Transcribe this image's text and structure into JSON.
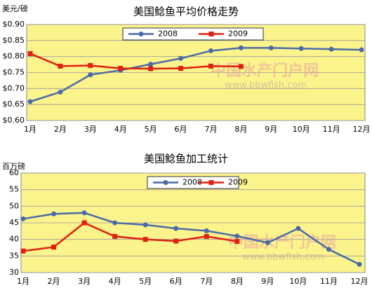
{
  "chart_data": [
    {
      "type": "line",
      "title": "美国鲶鱼平均价格走势",
      "y_label": "美元/磅",
      "categories": [
        "1月",
        "2月",
        "3月",
        "4月",
        "5月",
        "6月",
        "7月",
        "8月",
        "9月",
        "10月",
        "11月",
        "12月"
      ],
      "series": [
        {
          "name": "2008",
          "color": "#4a6aa8",
          "values": [
            0.659,
            0.689,
            0.743,
            0.757,
            0.776,
            0.794,
            0.818,
            0.827,
            0.827,
            0.825,
            0.823,
            0.821
          ]
        },
        {
          "name": "2009",
          "color": "#e02010",
          "values": [
            0.809,
            0.77,
            0.772,
            0.763,
            0.762,
            0.763,
            0.77,
            0.769,
            null,
            null,
            null,
            null
          ]
        }
      ],
      "ylim": [
        0.6,
        0.9
      ],
      "yticks": [
        {
          "value": 0.6,
          "label": "$0.60"
        },
        {
          "value": 0.65,
          "label": "$0.65"
        },
        {
          "value": 0.7,
          "label": "$0.70"
        },
        {
          "value": 0.75,
          "label": "$0.75"
        },
        {
          "value": 0.8,
          "label": "$0.80"
        },
        {
          "value": 0.85,
          "label": "$0.85"
        },
        {
          "value": 0.9,
          "label": "$0.90"
        }
      ],
      "grid": true,
      "legend": "top",
      "watermark": [
        "中国水产门户网",
        "www.bbwfish.com"
      ]
    },
    {
      "type": "line",
      "title": "美国鲶鱼加工统计",
      "y_label": "百万磅",
      "categories": [
        "1月",
        "2月",
        "3月",
        "4月",
        "5月",
        "6月",
        "7月",
        "8月",
        "9月",
        "10月",
        "11月",
        "12月"
      ],
      "series": [
        {
          "name": "2008",
          "color": "#4a6aa8",
          "values": [
            46.2,
            47.7,
            48.0,
            45.0,
            44.4,
            43.3,
            42.6,
            41.0,
            39.0,
            43.3,
            37.0,
            32.5
          ]
        },
        {
          "name": "2009",
          "color": "#e02010",
          "values": [
            36.5,
            37.7,
            45.0,
            40.9,
            40.0,
            39.5,
            40.9,
            39.4,
            null,
            null,
            null,
            null
          ]
        }
      ],
      "ylim": [
        30,
        60
      ],
      "yticks": [
        30,
        35,
        40,
        45,
        50,
        55,
        60
      ],
      "grid": true,
      "legend": "top",
      "watermark": [
        "中国水产门户网",
        "www.bbwfish.com"
      ]
    }
  ]
}
